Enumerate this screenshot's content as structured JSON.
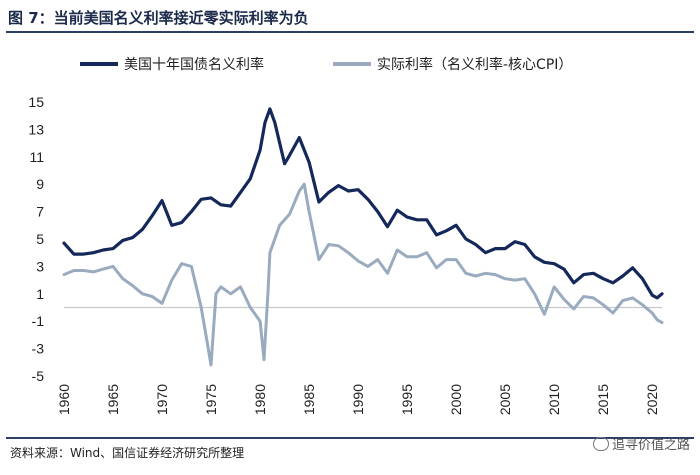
{
  "figure": {
    "title": "图  7：当前美国名义利率接近零实际利率为负",
    "source": "资料来源：Wind、国信证券经济研究所整理",
    "watermark": "追寻价值之路"
  },
  "colors": {
    "nominal": "#14285a",
    "real": "#9aabbf",
    "text": "#222222",
    "rule": "#2b3f67"
  },
  "chart_data": {
    "type": "line",
    "title": "",
    "xlabel": "",
    "ylabel": "",
    "xlim": [
      1960,
      2021
    ],
    "ylim": [
      -5,
      15
    ],
    "yticks": [
      15,
      13,
      11,
      9,
      7,
      5,
      3,
      1,
      -1,
      -3,
      -5
    ],
    "xticks": [
      "1960",
      "1965",
      "1970",
      "1975",
      "1980",
      "1985",
      "1990",
      "1995",
      "2000",
      "2005",
      "2010",
      "2015",
      "2020"
    ],
    "legend_position": "top",
    "series": [
      {
        "name": "美国十年国债名义利率",
        "x": [
          1960,
          1961,
          1962,
          1963,
          1964,
          1965,
          1966,
          1967,
          1968,
          1969,
          1970,
          1971,
          1972,
          1973,
          1974,
          1975,
          1976,
          1977,
          1978,
          1979,
          1980,
          1980.5,
          1981,
          1981.5,
          1982,
          1982.5,
          1983,
          1984,
          1985,
          1986,
          1987,
          1988,
          1989,
          1990,
          1991,
          1992,
          1993,
          1994,
          1995,
          1996,
          1997,
          1998,
          1999,
          2000,
          2001,
          2002,
          2003,
          2004,
          2005,
          2006,
          2007,
          2008,
          2009,
          2010,
          2011,
          2012,
          2013,
          2014,
          2015,
          2016,
          2017,
          2018,
          2019,
          2020,
          2020.5,
          2021
        ],
        "values": [
          4.7,
          3.9,
          3.9,
          4.0,
          4.2,
          4.3,
          4.9,
          5.1,
          5.7,
          6.7,
          7.8,
          6.0,
          6.2,
          7.0,
          7.9,
          8.0,
          7.5,
          7.4,
          8.4,
          9.4,
          11.5,
          13.5,
          14.5,
          13.5,
          12.0,
          10.5,
          11.1,
          12.4,
          10.6,
          7.7,
          8.4,
          8.9,
          8.5,
          8.6,
          7.9,
          7.0,
          5.9,
          7.1,
          6.6,
          6.4,
          6.4,
          5.3,
          5.6,
          6.0,
          5.0,
          4.6,
          4.0,
          4.3,
          4.3,
          4.8,
          4.6,
          3.7,
          3.3,
          3.2,
          2.8,
          1.8,
          2.4,
          2.5,
          2.1,
          1.8,
          2.3,
          2.9,
          2.1,
          0.9,
          0.7,
          1.0
        ]
      },
      {
        "name": "实际利率（名义利率-核心CPI）",
        "x": [
          1960,
          1961,
          1962,
          1963,
          1964,
          1965,
          1966,
          1967,
          1968,
          1969,
          1970,
          1971,
          1972,
          1973,
          1974,
          1974.6,
          1975,
          1975.5,
          1976,
          1977,
          1978,
          1979,
          1980,
          1980.4,
          1980.8,
          1981,
          1981.5,
          1982,
          1983,
          1984,
          1984.5,
          1985,
          1986,
          1987,
          1988,
          1989,
          1990,
          1991,
          1992,
          1993,
          1994,
          1995,
          1996,
          1997,
          1998,
          1999,
          2000,
          2001,
          2002,
          2003,
          2004,
          2005,
          2006,
          2007,
          2008,
          2009,
          2010,
          2011,
          2012,
          2013,
          2014,
          2015,
          2016,
          2017,
          2018,
          2019,
          2020,
          2020.5,
          2021
        ],
        "values": [
          2.4,
          2.7,
          2.7,
          2.6,
          2.8,
          3.0,
          2.1,
          1.6,
          1.0,
          0.8,
          0.3,
          2.0,
          3.2,
          3.0,
          0.0,
          -2.5,
          -4.2,
          1.0,
          1.5,
          1.0,
          1.5,
          0.0,
          -1.0,
          -3.8,
          1.0,
          4.0,
          5.0,
          6.0,
          6.8,
          8.5,
          9.0,
          7.0,
          3.5,
          4.6,
          4.5,
          4.0,
          3.4,
          3.0,
          3.5,
          2.5,
          4.2,
          3.7,
          3.7,
          4.0,
          2.9,
          3.5,
          3.5,
          2.5,
          2.3,
          2.5,
          2.4,
          2.1,
          2.0,
          2.1,
          1.0,
          -0.5,
          1.5,
          0.6,
          -0.1,
          0.8,
          0.7,
          0.2,
          -0.4,
          0.5,
          0.7,
          0.2,
          -0.4,
          -0.9,
          -1.1
        ]
      }
    ]
  }
}
